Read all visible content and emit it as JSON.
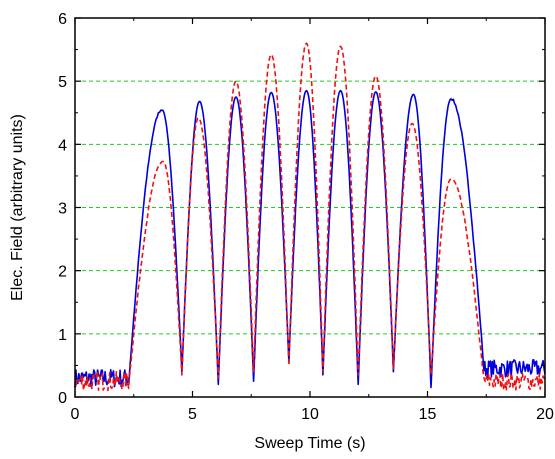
{
  "chart_data": {
    "type": "line",
    "title": "",
    "xlabel": "Sweep Time (s)",
    "ylabel": "Elec. Field (arbitrary units)",
    "xlim": [
      0,
      20
    ],
    "ylim": [
      0,
      6
    ],
    "xticks": [
      0,
      5,
      10,
      15,
      20
    ],
    "yticks": [
      0,
      1,
      2,
      3,
      4,
      5,
      6
    ],
    "xtick_labels": [
      "0",
      "5",
      "10",
      "15",
      "20"
    ],
    "ytick_labels": [
      "0",
      "1",
      "2",
      "3",
      "4",
      "5",
      "6"
    ],
    "grid": {
      "y_lines": [
        1,
        2,
        3,
        4,
        5
      ],
      "color": "#22cc22",
      "style": "dashed"
    },
    "legend": "none",
    "series": [
      {
        "color": "#0000dd",
        "style": "solid",
        "peaks": [
          {
            "x": 3.7,
            "y": 4.55
          },
          {
            "x": 5.3,
            "y": 4.68
          },
          {
            "x": 6.85,
            "y": 4.75
          },
          {
            "x": 8.35,
            "y": 4.82
          },
          {
            "x": 9.85,
            "y": 4.85
          },
          {
            "x": 11.3,
            "y": 4.85
          },
          {
            "x": 12.8,
            "y": 4.83
          },
          {
            "x": 14.4,
            "y": 4.79
          },
          {
            "x": 16.0,
            "y": 4.72
          }
        ],
        "minima": [
          {
            "x": 4.55,
            "y": 0.4
          },
          {
            "x": 6.1,
            "y": 0.2
          },
          {
            "x": 7.6,
            "y": 0.25
          },
          {
            "x": 9.1,
            "y": 0.55
          },
          {
            "x": 10.55,
            "y": 0.35
          },
          {
            "x": 12.05,
            "y": 0.2
          },
          {
            "x": 13.55,
            "y": 0.4
          },
          {
            "x": 15.15,
            "y": 0.15
          }
        ],
        "baseline_left": 0.3,
        "baseline_right": 0.45
      },
      {
        "color": "#ee1111",
        "style": "dashed",
        "peaks": [
          {
            "x": 3.75,
            "y": 3.73
          },
          {
            "x": 5.25,
            "y": 4.42
          },
          {
            "x": 6.85,
            "y": 5.0
          },
          {
            "x": 8.35,
            "y": 5.42
          },
          {
            "x": 9.85,
            "y": 5.6
          },
          {
            "x": 11.3,
            "y": 5.55
          },
          {
            "x": 12.8,
            "y": 5.08
          },
          {
            "x": 14.35,
            "y": 4.33
          },
          {
            "x": 16.0,
            "y": 3.45
          }
        ],
        "minima": [
          {
            "x": 4.55,
            "y": 0.35
          },
          {
            "x": 6.1,
            "y": 0.3
          },
          {
            "x": 7.6,
            "y": 0.4
          },
          {
            "x": 9.1,
            "y": 0.5
          },
          {
            "x": 10.55,
            "y": 0.4
          },
          {
            "x": 12.05,
            "y": 0.35
          },
          {
            "x": 13.55,
            "y": 0.45
          },
          {
            "x": 15.15,
            "y": 0.35
          }
        ],
        "baseline_left": 0.25,
        "baseline_right": 0.25
      }
    ]
  }
}
